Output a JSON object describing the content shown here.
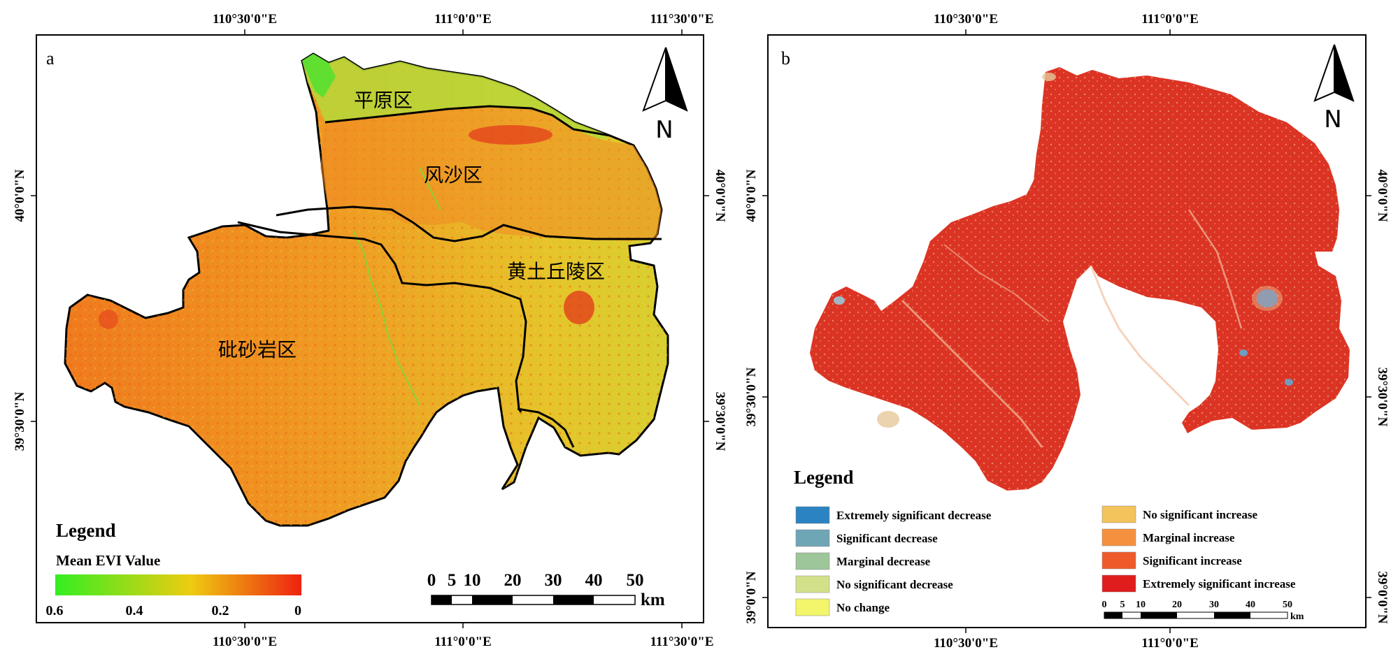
{
  "panel_a": {
    "label": "a",
    "top_ticks": [
      "110°30'0\"E",
      "111°0'0\"E",
      "111°30'0\"E"
    ],
    "bottom_ticks": [
      "110°30'0\"E",
      "111°0'0\"E",
      "111°30'0\"E"
    ],
    "left_ticks": [
      "40°0'0\"N",
      "39°30'0\"N"
    ],
    "right_ticks": [
      "40°0'0\"N",
      "39°30'0\"N"
    ],
    "regions": {
      "plain": "平原区",
      "sand": "风沙区",
      "loess": "黄土丘陵区",
      "sandstone": "砒砂岩区"
    },
    "north": "N",
    "legend": {
      "title": "Legend",
      "subtitle": "Mean EVI Value",
      "ticks": [
        "0.6",
        "0.4",
        "0.2",
        "0"
      ],
      "colors": [
        "#33ee22",
        "#eecc11",
        "#ee2211"
      ]
    },
    "scale": {
      "numbers": [
        "0",
        "5",
        "10",
        "20",
        "30",
        "40",
        "50"
      ],
      "unit": "km"
    }
  },
  "panel_b": {
    "label": "b",
    "top_ticks": [
      "110°30'0\"E",
      "111°0'0\"E"
    ],
    "bottom_ticks": [
      "110°30'0\"E",
      "111°0'0\"E"
    ],
    "left_ticks": [
      "40°0'0\"N",
      "39°30'0\"N",
      "39°0'0\"N"
    ],
    "right_ticks": [
      "40°0'0\"N",
      "39°30'0\"N",
      "39°0'0\"N"
    ],
    "north": "N",
    "legend": {
      "title": "Legend",
      "items": [
        {
          "label": "Extremely significant decrease",
          "color": "#2b83c2"
        },
        {
          "label": "Significant decrease",
          "color": "#6fa6b6"
        },
        {
          "label": "Marginal decrease",
          "color": "#9dc69a"
        },
        {
          "label": "No significant decrease",
          "color": "#d3e08a"
        },
        {
          "label": "No change",
          "color": "#f3f56a"
        },
        {
          "label": "No significant increase",
          "color": "#f3c35c"
        },
        {
          "label": "Marginal increase",
          "color": "#f5913e"
        },
        {
          "label": "Significant increase",
          "color": "#ee5a2a"
        },
        {
          "label": "Extremely significant increase",
          "color": "#e01d1d"
        }
      ]
    },
    "scale": {
      "numbers": [
        "0",
        "5",
        "10",
        "20",
        "30",
        "40",
        "50"
      ],
      "unit": "km"
    }
  }
}
